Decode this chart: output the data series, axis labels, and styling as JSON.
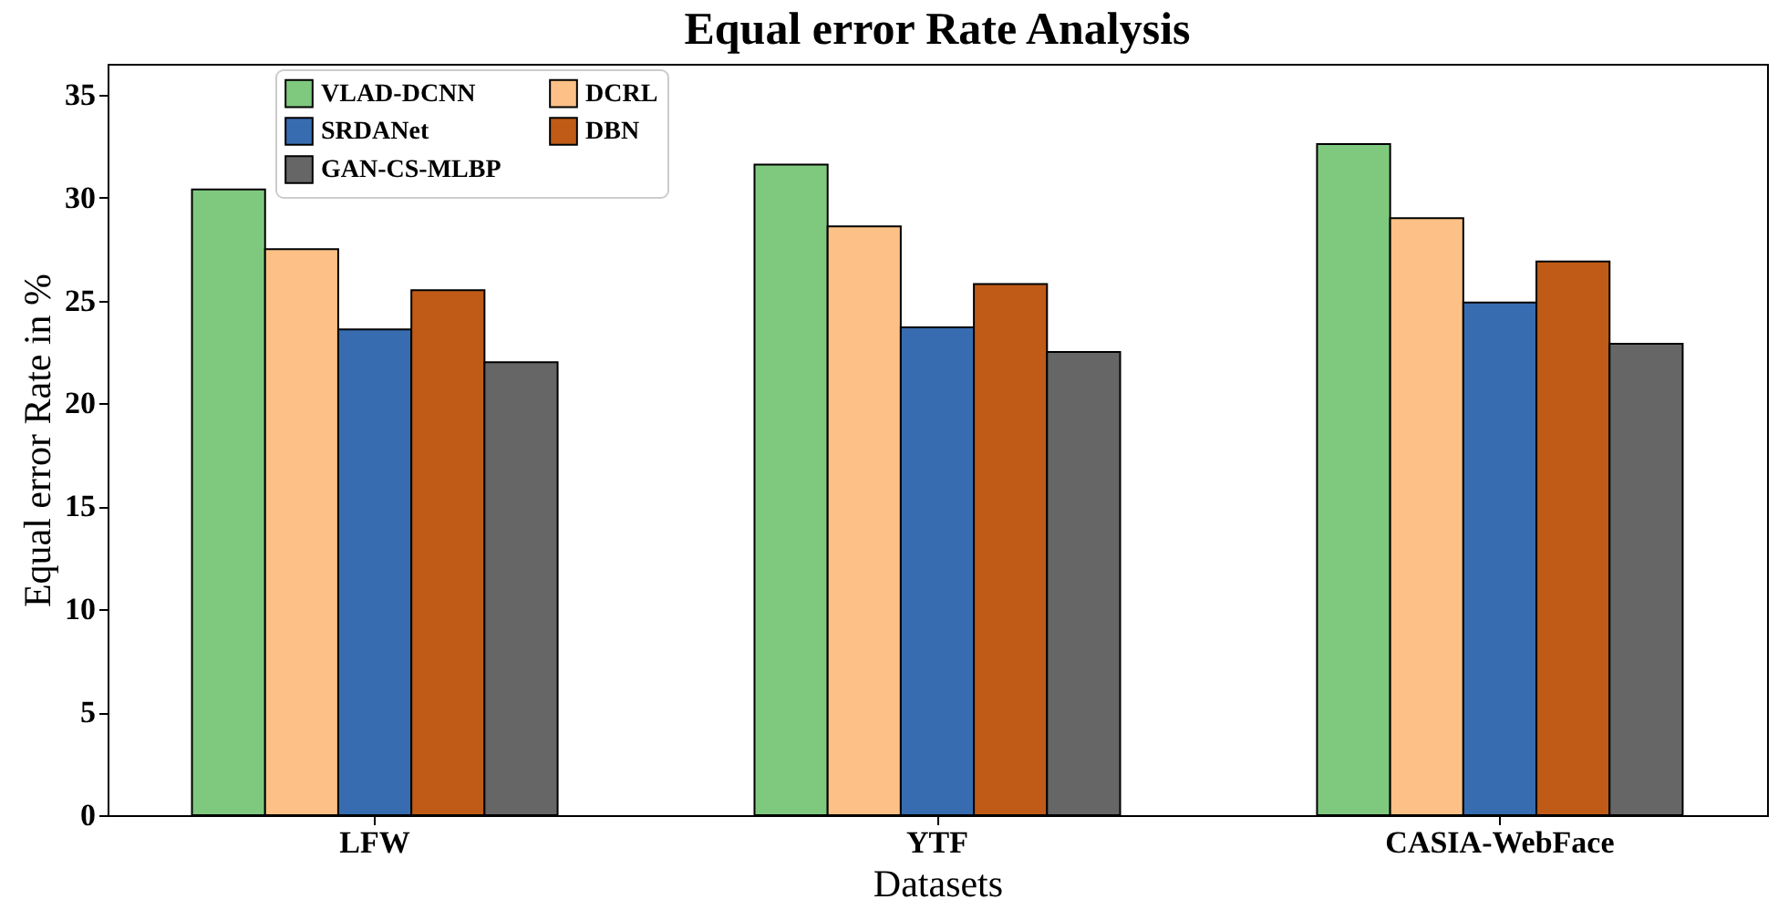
{
  "chart_data": {
    "type": "bar",
    "title": "Equal error Rate Analysis",
    "xlabel": "Datasets",
    "ylabel": "Equal error Rate in %",
    "categories": [
      "LFW",
      "YTF",
      "CASIA-WebFace"
    ],
    "series": [
      {
        "name": "VLAD-DCNN",
        "color": "#7fc97f",
        "values": [
          30.4,
          31.6,
          32.6
        ]
      },
      {
        "name": "DCRL",
        "color": "#fdc086",
        "values": [
          27.5,
          28.6,
          29.0
        ]
      },
      {
        "name": "SRDANet",
        "color": "#386cb0",
        "values": [
          23.6,
          23.7,
          24.9
        ]
      },
      {
        "name": "DBN",
        "color": "#bf5b17",
        "values": [
          25.5,
          25.8,
          26.9
        ]
      },
      {
        "name": "GAN-CS-MLBP",
        "color": "#666666",
        "values": [
          22.0,
          22.5,
          22.9
        ]
      }
    ],
    "ylim": [
      0,
      36.5
    ],
    "yticks": [
      0,
      5,
      10,
      15,
      20,
      25,
      30,
      35
    ],
    "grid": false,
    "legend": "top left"
  }
}
